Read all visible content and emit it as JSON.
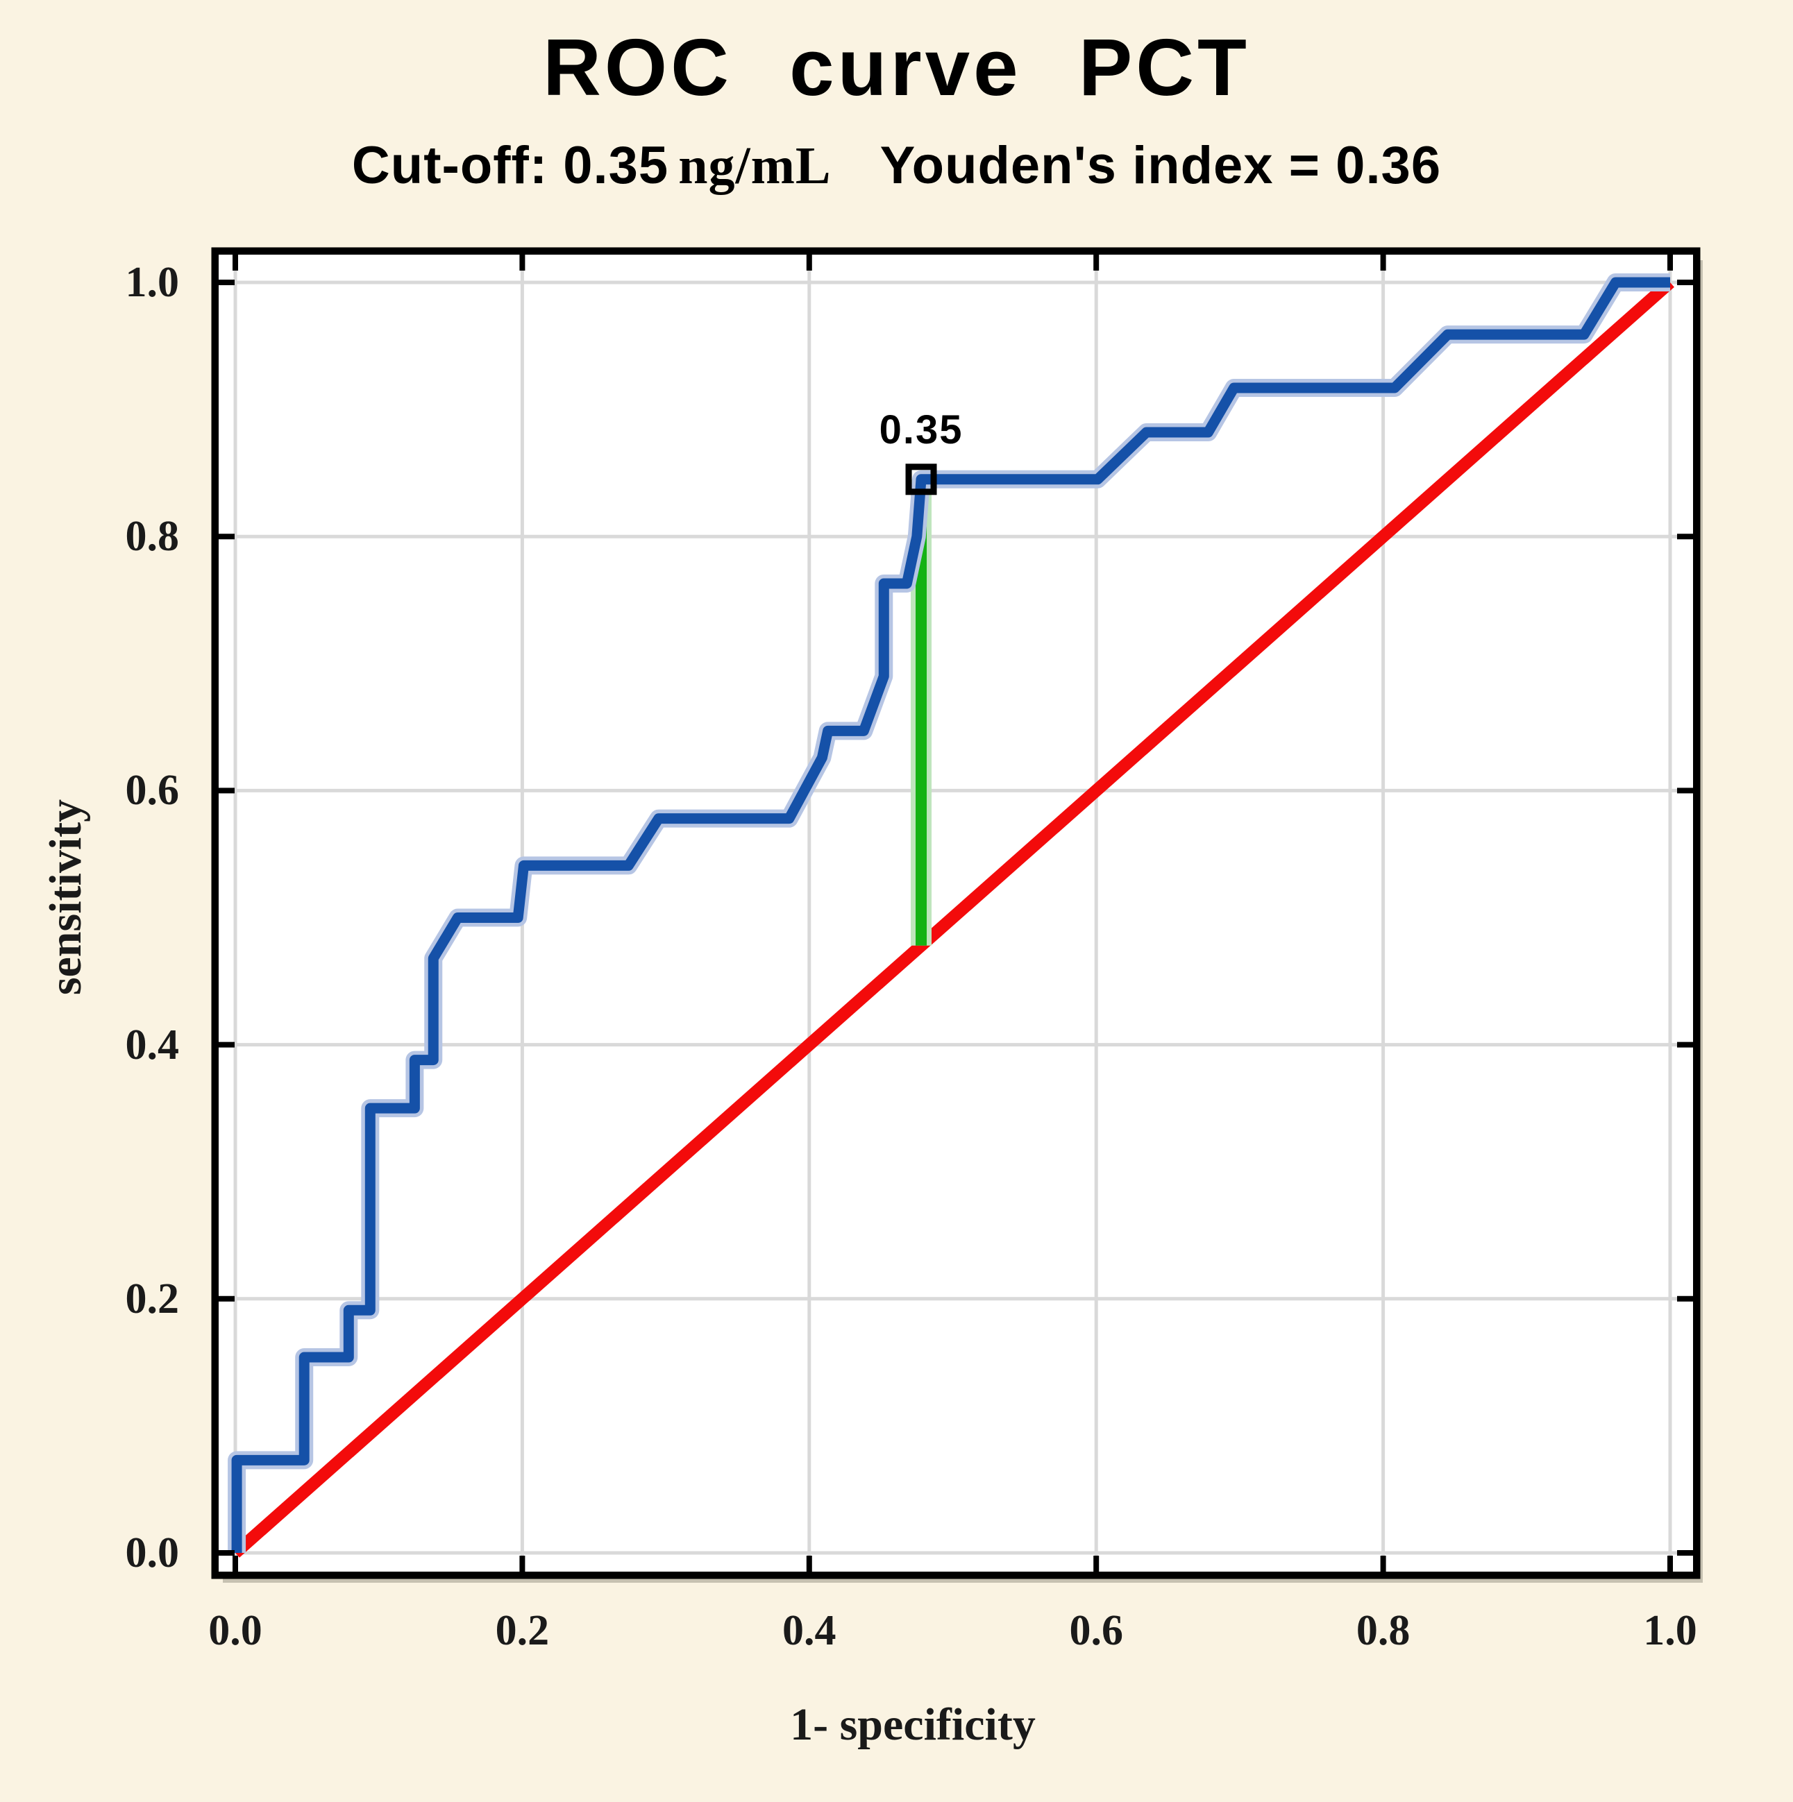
{
  "title": "ROC  curve  PCT",
  "subtitle": {
    "cutoff": "Cut-off: 0.35",
    "units": "ng/mL",
    "youden": "Youden's index  = 0.36"
  },
  "colors": {
    "background": "#faf3e2",
    "plot_background": "#ffffff",
    "grid": "#d9d9d9",
    "frame": "#000000",
    "roc_curve": "#1551a8",
    "roc_halo": "#b6c5e4",
    "diagonal": "#f30b0b",
    "youden_line": "#14b214",
    "youden_halo": "#bfe5bd",
    "marker": "#000000",
    "text": "#000000"
  },
  "chart_data": {
    "type": "line",
    "title": "ROC curve PCT",
    "subtitle": "Cut-off: 0.35 ng/mL  Youden's index = 0.36",
    "xlabel": "1- specificity",
    "ylabel": "sensitivity",
    "xlim": [
      0,
      1
    ],
    "ylim": [
      0,
      1
    ],
    "grid": true,
    "x_ticks": [
      0.0,
      0.2,
      0.4,
      0.6,
      0.8,
      1.0
    ],
    "y_ticks": [
      0.0,
      0.2,
      0.4,
      0.6,
      0.8,
      1.0
    ],
    "x_tick_labels": [
      "0.0",
      "0.2",
      "0.4",
      "0.6",
      "0.8",
      "1.0"
    ],
    "y_tick_labels": [
      "0.0",
      "0.2",
      "0.4",
      "0.6",
      "0.8",
      "1.0"
    ],
    "series": [
      {
        "name": "ROC curve (PCT)",
        "color": "#1551a8",
        "points": [
          [
            0.001,
            0.0
          ],
          [
            0.001,
            0.073
          ],
          [
            0.048,
            0.073
          ],
          [
            0.048,
            0.154
          ],
          [
            0.079,
            0.154
          ],
          [
            0.079,
            0.191
          ],
          [
            0.094,
            0.191
          ],
          [
            0.094,
            0.35
          ],
          [
            0.125,
            0.35
          ],
          [
            0.125,
            0.388
          ],
          [
            0.138,
            0.388
          ],
          [
            0.138,
            0.468
          ],
          [
            0.155,
            0.5
          ],
          [
            0.197,
            0.5
          ],
          [
            0.201,
            0.541
          ],
          [
            0.274,
            0.541
          ],
          [
            0.295,
            0.578
          ],
          [
            0.386,
            0.578
          ],
          [
            0.409,
            0.626
          ],
          [
            0.413,
            0.647
          ],
          [
            0.438,
            0.647
          ],
          [
            0.452,
            0.69
          ],
          [
            0.452,
            0.763
          ],
          [
            0.468,
            0.763
          ],
          [
            0.475,
            0.8
          ],
          [
            0.478,
            0.845
          ],
          [
            0.601,
            0.845
          ],
          [
            0.635,
            0.882
          ],
          [
            0.678,
            0.882
          ],
          [
            0.696,
            0.917
          ],
          [
            0.808,
            0.917
          ],
          [
            0.845,
            0.959
          ],
          [
            0.94,
            0.959
          ],
          [
            0.962,
            1.0
          ],
          [
            1.0,
            1.0
          ]
        ]
      },
      {
        "name": "chance diagonal",
        "color": "#f30b0b",
        "points": [
          [
            0.0,
            0.0
          ],
          [
            1.0,
            1.0
          ]
        ]
      },
      {
        "name": "Youden index segment",
        "color": "#14b214",
        "points": [
          [
            0.478,
            0.478
          ],
          [
            0.478,
            0.845
          ]
        ]
      }
    ],
    "cutoff": {
      "label": "0.35",
      "x": 0.478,
      "sensitivity": 0.845,
      "youden_index": 0.36
    }
  }
}
